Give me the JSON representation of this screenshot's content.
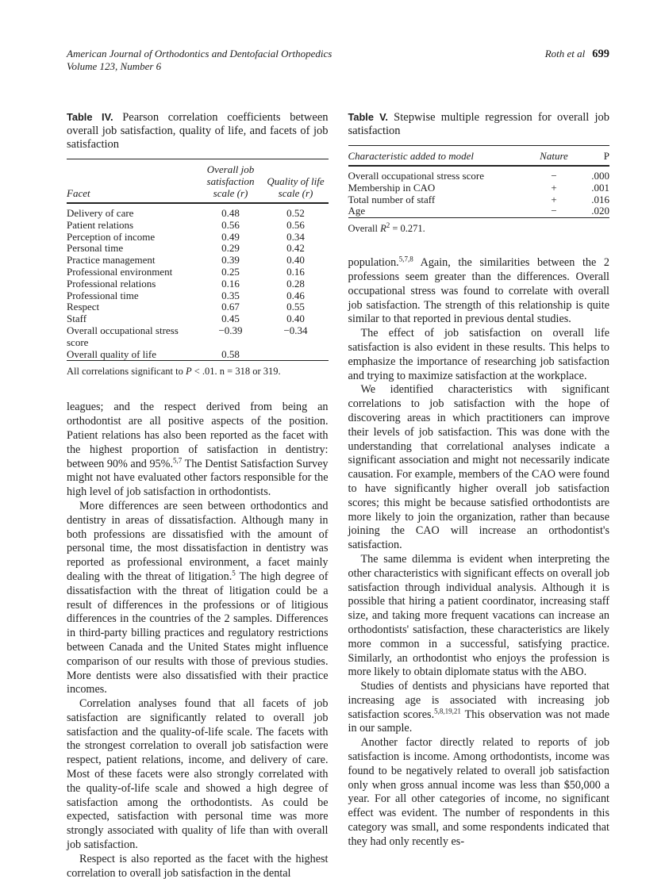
{
  "header": {
    "journal": "American Journal of Orthodontics and Dentofacial Orthopedics",
    "issue": "Volume 123, Number 6",
    "authors": "Roth et al",
    "page": "699"
  },
  "table4": {
    "label": "Table IV.",
    "title": "Pearson correlation coefficients between overall job satisfaction, quality of life, and facets of job satisfaction",
    "headers": {
      "facet": "Facet",
      "job": "Overall job satisfaction scale (r)",
      "qol": "Quality of life scale (r)"
    },
    "rows": [
      {
        "facet": "Delivery of care",
        "job": "0.48",
        "qol": "0.52"
      },
      {
        "facet": "Patient relations",
        "job": "0.56",
        "qol": "0.56"
      },
      {
        "facet": "Perception of income",
        "job": "0.49",
        "qol": "0.34"
      },
      {
        "facet": "Personal time",
        "job": "0.29",
        "qol": "0.42"
      },
      {
        "facet": "Practice management",
        "job": "0.39",
        "qol": "0.40"
      },
      {
        "facet": "Professional environment",
        "job": "0.25",
        "qol": "0.16"
      },
      {
        "facet": "Professional relations",
        "job": "0.16",
        "qol": "0.28"
      },
      {
        "facet": "Professional time",
        "job": "0.35",
        "qol": "0.46"
      },
      {
        "facet": "Respect",
        "job": "0.67",
        "qol": "0.55"
      },
      {
        "facet": "Staff",
        "job": "0.45",
        "qol": "0.40"
      },
      {
        "facet": "Overall occupational stress score",
        "job": "−0.39",
        "qol": "−0.34"
      },
      {
        "facet": "Overall quality of life",
        "job": "0.58",
        "qol": ""
      }
    ],
    "footnote": [
      {
        "t": "All correlations significant to "
      },
      {
        "t": "P",
        "i": true
      },
      {
        "t": " < .01. n = 318 or 319."
      }
    ]
  },
  "table5": {
    "label": "Table V.",
    "title": "Stepwise multiple regression for overall job satisfaction",
    "headers": {
      "characteristic": "Characteristic added to model",
      "nature": "Nature",
      "p": "P"
    },
    "rows": [
      {
        "characteristic": "Overall occupational stress score",
        "nature": "−",
        "p": ".000"
      },
      {
        "characteristic": "Membership in CAO",
        "nature": "+",
        "p": ".001"
      },
      {
        "characteristic": "Total number of staff",
        "nature": "+",
        "p": ".016"
      },
      {
        "characteristic": "Age",
        "nature": "−",
        "p": ".020"
      }
    ],
    "footnote": [
      {
        "t": "Overall "
      },
      {
        "t": "R",
        "i": true
      },
      {
        "t": "2",
        "sup": true
      },
      {
        "t": " = 0.271."
      }
    ]
  },
  "left": {
    "paragraphs": [
      [
        {
          "t": "leagues; and the respect derived from being an orthodontist are all positive aspects of the position. Patient relations has also been reported as the facet with the highest proportion of satisfaction in dentistry: between 90% and 95%."
        },
        {
          "t": "5,7",
          "sup": true
        },
        {
          "t": " The Dentist Satisfaction Survey might not have evaluated other factors responsible for the high level of job satisfaction in orthodontists."
        }
      ],
      [
        {
          "t": "More differences are seen between orthodontics and dentistry in areas of dissatisfaction. Although many in both professions are dissatisfied with the amount of personal time, the most dissatisfaction in dentistry was reported as professional environment, a facet mainly dealing with the threat of litigation."
        },
        {
          "t": "5",
          "sup": true
        },
        {
          "t": " The high degree of dissatisfaction with the threat of litigation could be a result of differences in the professions or of litigious differences in the countries of the 2 samples. Differences in third-party billing practices and regulatory restrictions between Canada and the United States might influence comparison of our results with those of previous studies. More dentists were also dissatisfied with their practice incomes."
        }
      ],
      [
        {
          "t": "Correlation analyses found that all facets of job satisfaction are significantly related to overall job satisfaction and the quality-of-life scale. The facets with the strongest correlation to overall job satisfaction were respect, patient relations, income, and delivery of care. Most of these facets were also strongly correlated with the quality-of-life scale and showed a high degree of satisfaction among the orthodontists. As could be expected, satisfaction with personal time was more strongly associated with quality of life than with overall job satisfaction."
        }
      ],
      [
        {
          "t": "Respect is also reported as the facet with the highest correlation to overall job satisfaction in the dental"
        }
      ]
    ]
  },
  "right": {
    "paragraphs": [
      [
        {
          "t": "population."
        },
        {
          "t": "5,7,8",
          "sup": true
        },
        {
          "t": " Again, the similarities between the 2 professions seem greater than the differences. Overall occupational stress was found to correlate with overall job satisfaction. The strength of this relationship is quite similar to that reported in previous dental studies."
        }
      ],
      [
        {
          "t": "The effect of job satisfaction on overall life satisfaction is also evident in these results. This helps to emphasize the importance of researching job satisfaction and trying to maximize satisfaction at the workplace."
        }
      ],
      [
        {
          "t": "We identified characteristics with significant correlations to job satisfaction with the hope of discovering areas in which practitioners can improve their levels of job satisfaction. This was done with the understanding that correlational analyses indicate a significant association and might not necessarily indicate causation. For example, members of the CAO were found to have significantly higher overall job satisfaction scores; this might be because satisfied orthodontists are more likely to join the organization, rather than because joining the CAO will increase an orthodontist's satisfaction."
        }
      ],
      [
        {
          "t": "The same dilemma is evident when interpreting the other characteristics with significant effects on overall job satisfaction through individual analysis. Although it is possible that hiring a patient coordinator, increasing staff size, and taking more frequent vacations can increase an orthodontists' satisfaction, these characteristics are likely more common in a successful, satisfying practice. Similarly, an orthodontist who enjoys the profession is more likely to obtain diplomate status with the ABO."
        }
      ],
      [
        {
          "t": "Studies of dentists and physicians have reported that increasing age is associated with increasing job satisfaction scores."
        },
        {
          "t": "5,8,19,21",
          "sup": true
        },
        {
          "t": " This observation was not made in our sample."
        }
      ],
      [
        {
          "t": "Another factor directly related to reports of job satisfaction is income. Among orthodontists, income was found to be negatively related to overall job satisfaction only when gross annual income was less than $50,000 a year. For all other categories of income, no significant effect was evident. The number of respondents in this category was small, and some respondents indicated that they had only recently es-"
        }
      ]
    ]
  }
}
